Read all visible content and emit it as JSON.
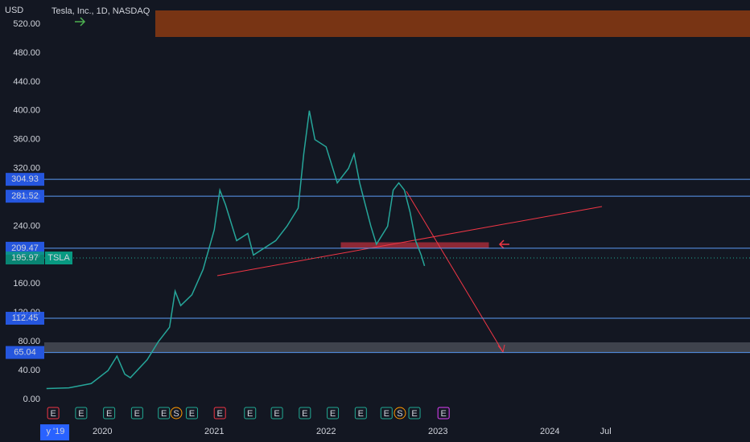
{
  "chart_data": {
    "type": "line",
    "title": "Tesla, Inc., 1D, NASDAQ",
    "currency": "USD",
    "symbol": "TSLA",
    "ylim": [
      -25.6,
      553.4
    ],
    "yticks": [
      {
        "value": 0,
        "label": "0.00"
      },
      {
        "value": 40,
        "label": "40.00"
      },
      {
        "value": 80,
        "label": "80.00"
      },
      {
        "value": 120,
        "label": "120.00"
      },
      {
        "value": 160,
        "label": "160.00"
      },
      {
        "value": 200,
        "label": "200.00"
      },
      {
        "value": 240,
        "label": "240.00"
      },
      {
        "value": 280,
        "label": "280.00"
      },
      {
        "value": 320,
        "label": "320.00"
      },
      {
        "value": 360,
        "label": "360.00"
      },
      {
        "value": 400,
        "label": "400.00"
      },
      {
        "value": 440,
        "label": "440.00"
      },
      {
        "value": 480,
        "label": "480.00"
      },
      {
        "value": 520,
        "label": "520.00"
      }
    ],
    "xlim": [
      2019.48,
      2025.79
    ],
    "xticks": [
      {
        "value": 2019.58,
        "label": "y '19"
      },
      2020,
      2021,
      2022,
      2023,
      2024,
      {
        "value": 2024.5,
        "label": "Jul"
      }
    ],
    "series": [
      {
        "name": "TSLA",
        "color": "#26a69a",
        "x": [
          2019.5,
          2019.7,
          2019.9,
          2020.05,
          2020.13,
          2020.2,
          2020.25,
          2020.4,
          2020.5,
          2020.6,
          2020.65,
          2020.7,
          2020.8,
          2020.9,
          2021.0,
          2021.05,
          2021.1,
          2021.2,
          2021.3,
          2021.35,
          2021.45,
          2021.55,
          2021.65,
          2021.75,
          2021.8,
          2021.85,
          2021.9,
          2022.0,
          2022.1,
          2022.2,
          2022.25,
          2022.3,
          2022.4,
          2022.45,
          2022.55,
          2022.6,
          2022.65,
          2022.7,
          2022.75,
          2022.8,
          2022.85,
          2022.88
        ],
        "values": [
          15,
          16,
          22,
          40,
          60,
          35,
          30,
          55,
          80,
          100,
          150,
          130,
          145,
          180,
          235,
          290,
          270,
          220,
          230,
          200,
          210,
          220,
          240,
          265,
          340,
          400,
          360,
          350,
          300,
          320,
          340,
          300,
          240,
          215,
          240,
          290,
          300,
          290,
          260,
          220,
          200,
          185
        ]
      }
    ],
    "levels": [
      {
        "value": 304.93,
        "color": "#5b9cf6"
      },
      {
        "value": 281.52,
        "color": "#5b9cf6"
      },
      {
        "value": 209.47,
        "color": "#5b9cf6"
      },
      {
        "value": 195.97,
        "color": "#22ab94"
      },
      {
        "value": 112.45,
        "color": "#5b9cf6"
      },
      {
        "value": 65.04,
        "color": "#5b9cf6"
      }
    ],
    "events": [
      {
        "x": 2019.56,
        "label": "E",
        "color": "#f23645"
      },
      {
        "x": 2019.81,
        "label": "E",
        "color": "#22ab94"
      },
      {
        "x": 2020.06,
        "label": "E",
        "color": "#22ab94"
      },
      {
        "x": 2020.31,
        "label": "E",
        "color": "#22ab94"
      },
      {
        "x": 2020.55,
        "label": "E",
        "color": "#22ab94"
      },
      {
        "x": 2020.66,
        "label": "S",
        "color": "#ff9800"
      },
      {
        "x": 2020.8,
        "label": "E",
        "color": "#22ab94"
      },
      {
        "x": 2021.05,
        "label": "E",
        "color": "#f23645"
      },
      {
        "x": 2021.32,
        "label": "E",
        "color": "#22ab94"
      },
      {
        "x": 2021.56,
        "label": "E",
        "color": "#22ab94"
      },
      {
        "x": 2021.81,
        "label": "E",
        "color": "#22ab94"
      },
      {
        "x": 2022.06,
        "label": "E",
        "color": "#22ab94"
      },
      {
        "x": 2022.31,
        "label": "E",
        "color": "#22ab94"
      },
      {
        "x": 2022.54,
        "label": "E",
        "color": "#22ab94"
      },
      {
        "x": 2022.66,
        "label": "S",
        "color": "#ff9800"
      },
      {
        "x": 2022.79,
        "label": "E",
        "color": "#22ab94"
      },
      {
        "x": 2023.05,
        "label": "E",
        "color": "#e040fb"
      }
    ]
  }
}
